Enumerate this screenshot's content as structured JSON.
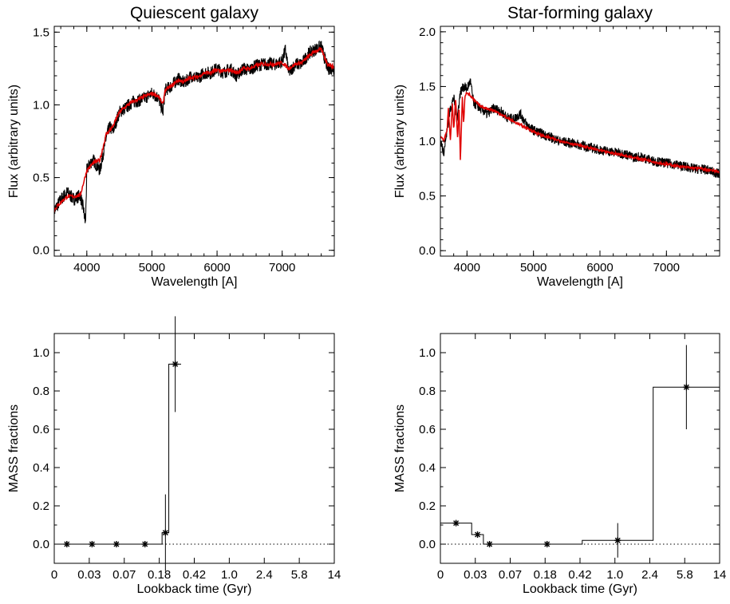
{
  "chart_data": [
    {
      "id": "quiescent-spectrum",
      "type": "line",
      "title": "Quiescent galaxy",
      "xlabel": "Wavelength [A]",
      "ylabel": "Flux (arbitrary units)",
      "xlim": [
        3500,
        7800
      ],
      "ylim": [
        -0.04,
        1.54
      ],
      "xticks": [
        4000,
        5000,
        6000,
        7000
      ],
      "xtick_labels": [
        "4000",
        "5000",
        "6000",
        "7000"
      ],
      "yticks": [
        0.0,
        0.5,
        1.0,
        1.5
      ],
      "ytick_labels": [
        "0.0",
        "0.5",
        "1.0",
        "1.5"
      ],
      "grid": false,
      "series": [
        {
          "color": "#000000",
          "role": "observed",
          "x": [
            3500,
            3600,
            3700,
            3800,
            3900,
            3950,
            3980,
            4000,
            4050,
            4100,
            4200,
            4300,
            4350,
            4400,
            4500,
            4600,
            4700,
            4800,
            4900,
            5000,
            5100,
            5170,
            5200,
            5300,
            5400,
            5500,
            5600,
            5700,
            5800,
            5900,
            6000,
            6100,
            6200,
            6300,
            6400,
            6500,
            6600,
            6700,
            6800,
            6900,
            7000,
            7050,
            7100,
            7200,
            7300,
            7400,
            7500,
            7600,
            7700,
            7800
          ],
          "y": [
            0.27,
            0.35,
            0.4,
            0.35,
            0.38,
            0.28,
            0.18,
            0.55,
            0.6,
            0.62,
            0.55,
            0.78,
            0.85,
            0.82,
            0.95,
            0.98,
            1.02,
            1.03,
            1.05,
            1.08,
            1.05,
            0.95,
            1.1,
            1.13,
            1.18,
            1.15,
            1.2,
            1.18,
            1.22,
            1.22,
            1.25,
            1.22,
            1.25,
            1.2,
            1.25,
            1.24,
            1.27,
            1.28,
            1.28,
            1.28,
            1.3,
            1.38,
            1.22,
            1.28,
            1.28,
            1.35,
            1.38,
            1.4,
            1.25,
            1.25
          ]
        },
        {
          "color": "#e00000",
          "role": "model",
          "x": [
            3500,
            3600,
            3700,
            3800,
            3900,
            4000,
            4100,
            4200,
            4300,
            4400,
            4500,
            4600,
            4700,
            4800,
            4900,
            5000,
            5100,
            5170,
            5200,
            5300,
            5400,
            5500,
            5600,
            5700,
            5800,
            5900,
            6000,
            6100,
            6200,
            6300,
            6400,
            6500,
            6600,
            6700,
            6800,
            6900,
            7000,
            7100,
            7200,
            7300,
            7400,
            7500,
            7600,
            7700,
            7800
          ],
          "y": [
            0.28,
            0.33,
            0.37,
            0.37,
            0.38,
            0.55,
            0.6,
            0.62,
            0.8,
            0.85,
            0.95,
            0.99,
            1.02,
            1.04,
            1.06,
            1.08,
            1.06,
            1.0,
            1.1,
            1.13,
            1.17,
            1.16,
            1.19,
            1.19,
            1.22,
            1.22,
            1.24,
            1.23,
            1.24,
            1.22,
            1.25,
            1.25,
            1.27,
            1.28,
            1.28,
            1.28,
            1.29,
            1.25,
            1.28,
            1.29,
            1.33,
            1.37,
            1.38,
            1.28,
            1.26
          ]
        }
      ]
    },
    {
      "id": "starforming-spectrum",
      "type": "line",
      "title": "Star-forming galaxy",
      "xlabel": "Wavelength [A]",
      "ylabel": "Flux (arbitrary units)",
      "xlim": [
        3600,
        7800
      ],
      "ylim": [
        -0.05,
        2.05
      ],
      "xticks": [
        4000,
        5000,
        6000,
        7000
      ],
      "xtick_labels": [
        "4000",
        "5000",
        "6000",
        "7000"
      ],
      "yticks": [
        0.0,
        0.5,
        1.0,
        1.5,
        2.0
      ],
      "ytick_labels": [
        "0.0",
        "0.5",
        "1.0",
        "1.5",
        "2.0"
      ],
      "grid": false,
      "series": [
        {
          "color": "#000000",
          "role": "observed",
          "x": [
            3600,
            3650,
            3700,
            3750,
            3800,
            3850,
            3900,
            3950,
            4000,
            4050,
            4100,
            4200,
            4300,
            4400,
            4500,
            4600,
            4700,
            4800,
            4900,
            5000,
            5200,
            5400,
            5600,
            5800,
            6000,
            6200,
            6400,
            6500,
            6600,
            6800,
            7000,
            7200,
            7400,
            7600,
            7800
          ],
          "y": [
            1.0,
            0.9,
            1.1,
            1.3,
            1.4,
            1.2,
            1.45,
            1.5,
            1.48,
            1.55,
            1.35,
            1.3,
            1.25,
            1.3,
            1.28,
            1.22,
            1.2,
            1.25,
            1.15,
            1.1,
            1.05,
            1.0,
            0.98,
            0.95,
            0.92,
            0.9,
            0.88,
            0.85,
            0.86,
            0.82,
            0.8,
            0.78,
            0.75,
            0.74,
            0.7
          ]
        },
        {
          "color": "#e00000",
          "role": "model",
          "x": [
            3600,
            3650,
            3700,
            3720,
            3750,
            3780,
            3800,
            3830,
            3860,
            3880,
            3900,
            3930,
            3950,
            3970,
            4000,
            4100,
            4200,
            4300,
            4400,
            4500,
            4700,
            4900,
            5100,
            5300,
            5500,
            5700,
            5900,
            6100,
            6300,
            6500,
            6700,
            6900,
            7100,
            7300,
            7500,
            7700,
            7800
          ],
          "y": [
            1.05,
            1.0,
            1.1,
            1.3,
            1.0,
            1.35,
            1.1,
            1.4,
            1.0,
            1.35,
            0.82,
            1.4,
            1.15,
            1.42,
            1.45,
            1.38,
            1.32,
            1.3,
            1.28,
            1.25,
            1.18,
            1.12,
            1.06,
            1.02,
            0.99,
            0.96,
            0.93,
            0.9,
            0.88,
            0.85,
            0.83,
            0.8,
            0.78,
            0.76,
            0.75,
            0.73,
            0.72
          ]
        }
      ]
    },
    {
      "id": "quiescent-mass-fractions",
      "type": "bar",
      "title": "",
      "xlabel": "Lookback time (Gyr)",
      "ylabel": "MASS fractions",
      "xlim": [
        0,
        1
      ],
      "ylim": [
        -0.1,
        1.1
      ],
      "xticks": [
        0,
        0.0833,
        0.1667,
        0.25,
        0.3333,
        0.4167,
        0.5,
        0.5833,
        0.6667,
        0.75,
        0.8333,
        0.9167,
        1.0
      ],
      "xtick_labels": [
        "0",
        "0.03",
        "0.07",
        "0.18",
        "0.42",
        "1.0",
        "2.4",
        "5.8",
        "14"
      ],
      "xtick_label_positions": [
        0,
        0.0833,
        0.1667,
        0.25,
        0.3333,
        0.4167,
        0.5,
        0.5833,
        0.6667
      ],
      "yticks": [
        0.0,
        0.2,
        0.4,
        0.6,
        0.8,
        1.0
      ],
      "ytick_labels": [
        "0.0",
        "0.2",
        "0.4",
        "0.6",
        "0.8",
        "1.0"
      ],
      "zero_line": "dotted",
      "bins": [
        {
          "x0": 0.0,
          "x1": 0.09,
          "mass": 0.0,
          "point_x": 0.045,
          "err": 0.0
        },
        {
          "x0": 0.09,
          "x1": 0.185,
          "mass": 0.0,
          "point_x": 0.135,
          "err": 0.0
        },
        {
          "x0": 0.185,
          "x1": 0.272,
          "mass": 0.0,
          "point_x": 0.222,
          "err": 0.0
        },
        {
          "x0": 0.272,
          "x1": 0.385,
          "mass": 0.0,
          "point_x": 0.324,
          "err": 0.01
        },
        {
          "x0": 0.385,
          "x1": 0.409,
          "mass": 0.06,
          "point_x": 0.397,
          "err": 0.2
        },
        {
          "x0": 0.409,
          "x1": 0.453,
          "mass": 0.94,
          "point_x": 0.432,
          "err": 0.25
        }
      ]
    },
    {
      "id": "starforming-mass-fractions",
      "type": "bar",
      "title": "",
      "xlabel": "Lookback time (Gyr)",
      "ylabel": "MASS fractions",
      "xlim": [
        0,
        1
      ],
      "ylim": [
        -0.1,
        1.1
      ],
      "xtick_labels": [
        "0",
        "0.03",
        "0.07",
        "0.18",
        "0.42",
        "1.0",
        "2.4",
        "5.8",
        "14"
      ],
      "yticks": [
        0.0,
        0.2,
        0.4,
        0.6,
        0.8,
        1.0
      ],
      "ytick_labels": [
        "0.0",
        "0.2",
        "0.4",
        "0.6",
        "0.8",
        "1.0"
      ],
      "zero_line": "dotted",
      "bins": [
        {
          "x0": 0.0,
          "x1": 0.112,
          "mass": 0.11,
          "point_x": 0.056,
          "err": 0.0
        },
        {
          "x0": 0.112,
          "x1": 0.154,
          "mass": 0.05,
          "point_x": 0.133,
          "err": 0.0
        },
        {
          "x0": 0.154,
          "x1": 0.258,
          "mass": 0.0,
          "point_x": 0.176,
          "err": 0.0
        },
        {
          "x0": 0.258,
          "x1": 0.508,
          "mass": 0.0,
          "point_x": 0.382,
          "err": 0.0
        },
        {
          "x0": 0.508,
          "x1": 0.762,
          "mass": 0.02,
          "point_x": 0.635,
          "err": 0.09
        },
        {
          "x0": 0.762,
          "x1": 1.0,
          "mass": 0.82,
          "point_x": 0.881,
          "err": 0.22
        }
      ]
    }
  ]
}
